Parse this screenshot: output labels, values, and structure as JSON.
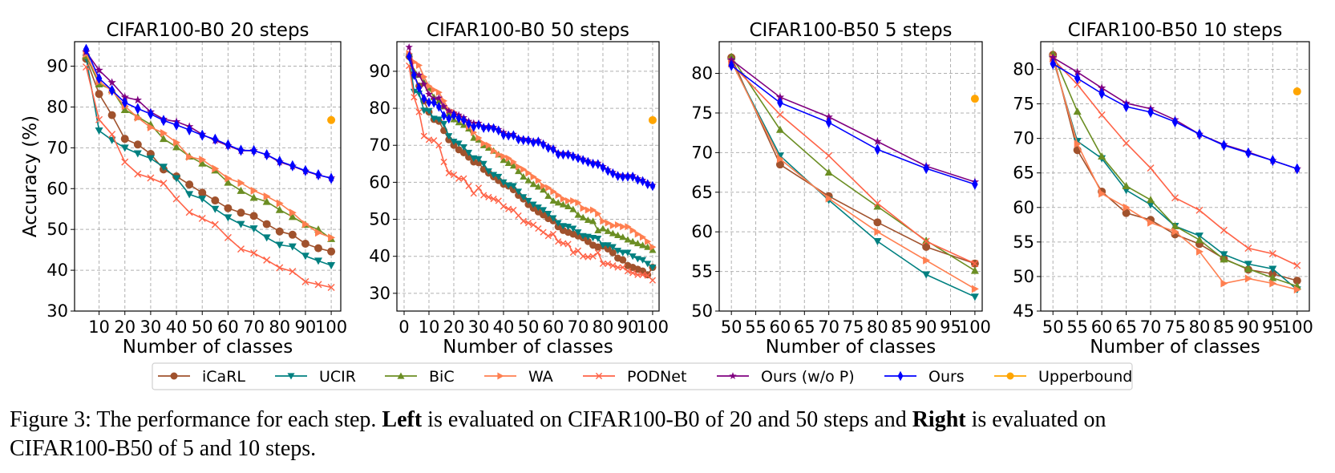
{
  "series_meta": [
    {
      "name": "iCaRL",
      "color": "#a0522d",
      "marker": "circle"
    },
    {
      "name": "UCIR",
      "color": "#008080",
      "marker": "triangle-down"
    },
    {
      "name": "BiC",
      "color": "#6b8e23",
      "marker": "triangle-up"
    },
    {
      "name": "WA",
      "color": "#ff7f50",
      "marker": "triangle-right"
    },
    {
      "name": "PODNet",
      "color": "#ff6347",
      "marker": "x"
    },
    {
      "name": "Ours (w/o P)",
      "color": "#800080",
      "marker": "star"
    },
    {
      "name": "Ours",
      "color": "#0000ff",
      "marker": "thin-diamond"
    },
    {
      "name": "Upperbound",
      "color": "#ffa500",
      "marker": "hexagon"
    }
  ],
  "legend": {
    "placement": "bottom-center",
    "items": [
      "iCaRL",
      "UCIR",
      "BiC",
      "WA",
      "PODNet",
      "Ours (w/o P)",
      "Ours",
      "Upperbound"
    ]
  },
  "caption": {
    "prefix": "Figure 3: The performance for each step. ",
    "left_bold": "Left",
    "middle": " is evaluated on CIFAR100-B0 of 20 and 50 steps and ",
    "right_bold": "Right",
    "suffix": " is evaluated on",
    "line2": "CIFAR100-B50 of 5 and 10 steps."
  },
  "chart_data": [
    {
      "type": "line",
      "title": "CIFAR100-B0 20 steps",
      "xlabel": "Number of classes",
      "ylabel": "Accuracy (%)",
      "xlim": [
        0.5,
        103.7
      ],
      "ylim": [
        30,
        96
      ],
      "xticks": [
        10,
        20,
        30,
        40,
        50,
        60,
        70,
        80,
        90,
        100
      ],
      "yticks": [
        30,
        40,
        50,
        60,
        70,
        80,
        90
      ],
      "grid": true,
      "x": [
        5,
        10,
        15,
        20,
        25,
        30,
        35,
        40,
        45,
        50,
        55,
        60,
        65,
        70,
        75,
        80,
        85,
        90,
        95,
        100
      ],
      "series": [
        {
          "name": "iCaRL",
          "values": [
            91.8,
            83.2,
            78,
            72.2,
            70.8,
            68.5,
            64.7,
            63,
            61,
            59,
            57.1,
            55.2,
            54.1,
            53.3,
            51.3,
            49.5,
            48.7,
            46.5,
            45.4,
            44.6
          ]
        },
        {
          "name": "UCIR",
          "values": [
            92,
            74.2,
            71.9,
            70,
            68.6,
            67.4,
            65.3,
            62.5,
            58.6,
            57.5,
            55,
            52.9,
            51.3,
            50.2,
            48,
            46.2,
            45.8,
            43.5,
            42.3,
            41.2
          ]
        },
        {
          "name": "BiC",
          "values": [
            92.5,
            85.6,
            84.3,
            79.3,
            77.6,
            75.7,
            72.2,
            70.2,
            67.9,
            66.2,
            64.5,
            61.5,
            59.5,
            57.8,
            56.8,
            54.8,
            53.1,
            51.2,
            50,
            47.7
          ]
        },
        {
          "name": "WA",
          "values": [
            93,
            86.2,
            84,
            80.2,
            77.4,
            75,
            73.6,
            71.3,
            67.8,
            67.1,
            64.9,
            62.5,
            61.4,
            59.5,
            58.1,
            56.4,
            54.1,
            51.3,
            49.2,
            48
          ]
        },
        {
          "name": "PODNet",
          "values": [
            89.8,
            76.9,
            73.3,
            66.5,
            63.6,
            62.6,
            61.3,
            57.5,
            54.2,
            52.7,
            51.2,
            48,
            45.2,
            44.2,
            42.5,
            40.6,
            39.7,
            37.2,
            36.5,
            35.8
          ]
        },
        {
          "name": "Ours (w/o P)",
          "values": [
            93.5,
            89,
            86,
            82.4,
            81.7,
            78.8,
            77,
            76.4,
            75.2,
            73.3,
            71.8,
            70.5,
            69.3,
            69.3,
            68.3,
            66.5,
            65.5,
            64.3,
            63.3,
            62.6
          ]
        },
        {
          "name": "Ours",
          "values": [
            94.1,
            87,
            84.1,
            81.1,
            79.6,
            78.3,
            76.7,
            75.6,
            74.4,
            73.1,
            72.1,
            70.7,
            69.4,
            69.3,
            68.3,
            66.7,
            65.6,
            64.4,
            63.4,
            62.5
          ]
        },
        {
          "name": "Upperbound",
          "points": [
            [
              100,
              76.8
            ]
          ]
        }
      ]
    },
    {
      "type": "line",
      "title": "CIFAR100-B0 50 steps",
      "xlabel": "Number of classes",
      "ylabel": "",
      "xlim": [
        -2.9,
        102.6
      ],
      "ylim": [
        25.2,
        98
      ],
      "xticks": [
        0,
        10,
        20,
        30,
        40,
        50,
        60,
        70,
        80,
        90,
        100
      ],
      "yticks": [
        30,
        40,
        50,
        60,
        70,
        80,
        90
      ],
      "grid": true,
      "x": [
        2,
        4,
        6,
        8,
        10,
        12,
        14,
        16,
        18,
        20,
        22,
        24,
        26,
        28,
        30,
        32,
        34,
        36,
        38,
        40,
        42,
        44,
        46,
        48,
        50,
        52,
        54,
        56,
        58,
        60,
        62,
        64,
        66,
        68,
        70,
        72,
        74,
        76,
        78,
        80,
        82,
        84,
        86,
        88,
        90,
        92,
        94,
        96,
        98,
        100
      ],
      "series": [
        {
          "name": "iCaRL",
          "values": [
            94,
            89,
            86,
            82,
            79,
            77,
            76.5,
            74,
            71.5,
            70,
            68.8,
            68,
            66.8,
            65.5,
            65.3,
            63.5,
            62.5,
            61.5,
            60.5,
            59.5,
            59,
            58,
            56.5,
            55.5,
            54,
            53,
            52,
            51.2,
            50.2,
            49.6,
            48,
            47,
            46.5,
            46,
            45.5,
            45,
            44,
            43,
            42.5,
            42.8,
            42,
            41,
            39.5,
            39,
            37.5,
            37,
            36.5,
            36,
            35,
            37
          ]
        },
        {
          "name": "UCIR",
          "values": [
            94,
            84.5,
            84,
            79.4,
            79.3,
            77.2,
            77,
            75.8,
            72.5,
            71,
            70.5,
            69.5,
            68,
            66.5,
            66.3,
            65,
            63,
            62,
            61.5,
            60,
            59.2,
            59,
            57.5,
            56,
            55,
            54,
            53.2,
            52.5,
            51.5,
            50.3,
            49,
            48.2,
            48,
            47.5,
            46.5,
            45.5,
            45.3,
            45,
            44.8,
            43,
            43,
            42.5,
            41.5,
            41,
            41,
            40,
            39.3,
            39,
            38,
            37
          ]
        },
        {
          "name": "BiC",
          "values": [
            94.5,
            90,
            89,
            87,
            85.5,
            83,
            82,
            80.5,
            78.5,
            77,
            76.2,
            75.5,
            74.5,
            72,
            71.5,
            70,
            69.3,
            68.5,
            67.5,
            66,
            65.2,
            64.5,
            63,
            61.5,
            60.5,
            59.5,
            58.8,
            58,
            56.3,
            55,
            54.5,
            54,
            53.5,
            52.7,
            51.2,
            50.5,
            49.8,
            49.5,
            47,
            47.5,
            46.8,
            46.2,
            45.7,
            45.2,
            44.5,
            44,
            43.5,
            43,
            42.5,
            41.7
          ]
        },
        {
          "name": "WA",
          "values": [
            94.8,
            92.5,
            91.6,
            88.5,
            86,
            85,
            84.3,
            82,
            79.5,
            79,
            78,
            77,
            75,
            73.5,
            72,
            70.5,
            70,
            68.5,
            67.5,
            67,
            66.5,
            65.5,
            64.2,
            63.5,
            62.5,
            61.5,
            60.5,
            59,
            58.5,
            57.5,
            56.5,
            55.5,
            55,
            55,
            54.5,
            53,
            52.5,
            52.5,
            51.5,
            49.5,
            49,
            48.3,
            48.5,
            48,
            48,
            47,
            46,
            45.2,
            44,
            42.5
          ]
        },
        {
          "name": "PODNet",
          "values": [
            91.5,
            83,
            79,
            72.5,
            71.5,
            71.3,
            70,
            65.5,
            62.5,
            62,
            61,
            61,
            59,
            57,
            58.5,
            56.5,
            56,
            55.5,
            55,
            53.5,
            52.8,
            52.5,
            51,
            49.5,
            49,
            48.5,
            47.5,
            46.5,
            45.5,
            46,
            44,
            43.5,
            43.3,
            41,
            41.5,
            40,
            39.8,
            40,
            41,
            38,
            38,
            37.5,
            37,
            37,
            36,
            35.5,
            35,
            35,
            34.8,
            33.5
          ]
        },
        {
          "name": "Ours (w/o P)",
          "values": [
            96.5,
            89.5,
            89,
            86.5,
            83.8,
            82.5,
            82.8,
            80.5,
            79.3,
            78.7,
            78.2,
            77.5,
            76.5,
            76,
            76,
            75,
            75.1,
            74.9,
            74.3,
            73.5,
            72.9,
            73,
            71.9,
            71.7,
            71.6,
            71.1,
            71.3,
            70.5,
            69.6,
            69.2,
            67.9,
            67.8,
            67.8,
            67.3,
            66.8,
            66.3,
            65.8,
            65.3,
            65.2,
            64.3,
            63.4,
            62.7,
            62,
            61.8,
            61.8,
            61.8,
            61,
            60.6,
            59.8,
            59.2
          ]
        },
        {
          "name": "Ours",
          "values": [
            94,
            89,
            85.5,
            82.6,
            81.6,
            81.5,
            80.4,
            78,
            77.2,
            78.1,
            77.3,
            76.8,
            75.8,
            75,
            75.5,
            74.7,
            74.8,
            74.6,
            74,
            72.8,
            72.6,
            72.7,
            71.6,
            71.4,
            71.3,
            70.8,
            71,
            70.2,
            69.3,
            68.9,
            67.6,
            67.5,
            67.5,
            67,
            66.5,
            66,
            65.5,
            65,
            64.9,
            64,
            63.1,
            62.4,
            61.7,
            61.5,
            61.5,
            61.5,
            60.7,
            60.3,
            59.5,
            59
          ]
        },
        {
          "name": "Upperbound",
          "points": [
            [
              100,
              76.8
            ]
          ]
        }
      ]
    },
    {
      "type": "line",
      "title": "CIFAR100-B50 5 steps",
      "xlabel": "Number of classes",
      "ylabel": "",
      "xlim": [
        47.5,
        101.5
      ],
      "ylim": [
        50,
        84
      ],
      "xticks": [
        50,
        55,
        60,
        65,
        70,
        75,
        80,
        85,
        90,
        95,
        100
      ],
      "yticks": [
        50,
        55,
        60,
        65,
        70,
        75,
        80
      ],
      "grid": true,
      "x": [
        50,
        60,
        70,
        80,
        90,
        100
      ],
      "series": [
        {
          "name": "iCaRL",
          "values": [
            82,
            68.5,
            64.5,
            61.2,
            58.1,
            56
          ]
        },
        {
          "name": "UCIR",
          "values": [
            81.5,
            69.6,
            64,
            58.8,
            54.6,
            51.8
          ]
        },
        {
          "name": "BiC",
          "values": [
            82.1,
            72.9,
            67.5,
            63.2,
            58.9,
            55.1
          ]
        },
        {
          "name": "WA",
          "values": [
            81.5,
            69.2,
            64.2,
            60,
            56.4,
            52.8
          ]
        },
        {
          "name": "PODNet",
          "values": [
            81.2,
            74.8,
            69.6,
            63.6,
            58.8,
            56
          ]
        },
        {
          "name": "Ours (w/o P)",
          "values": [
            81.7,
            77,
            74.5,
            71.4,
            68.3,
            66.3
          ]
        },
        {
          "name": "Ours",
          "values": [
            81,
            76.3,
            73.8,
            70.4,
            68,
            66
          ]
        },
        {
          "name": "Upperbound",
          "points": [
            [
              100,
              76.8
            ]
          ]
        }
      ]
    },
    {
      "type": "line",
      "title": "CIFAR100-B50 10 steps",
      "xlabel": "Number of classes",
      "ylabel": "",
      "xlim": [
        47.5,
        102.5
      ],
      "ylim": [
        45,
        84
      ],
      "xticks": [
        50,
        55,
        60,
        65,
        70,
        75,
        80,
        85,
        90,
        95,
        100
      ],
      "yticks": [
        45,
        50,
        55,
        60,
        65,
        70,
        75,
        80
      ],
      "grid": true,
      "x": [
        50,
        55,
        60,
        65,
        70,
        75,
        80,
        85,
        90,
        95,
        100
      ],
      "series": [
        {
          "name": "iCaRL",
          "values": [
            82.1,
            68.3,
            62.3,
            59.2,
            58.2,
            56.1,
            54.7,
            52.6,
            51,
            50.4,
            49.4
          ]
        },
        {
          "name": "UCIR",
          "values": [
            81.5,
            69.6,
            67.1,
            62.5,
            60.4,
            57.3,
            55.9,
            53.2,
            51.8,
            51.1,
            48.1
          ]
        },
        {
          "name": "BiC",
          "values": [
            82.2,
            73.9,
            67.4,
            63.1,
            61.1,
            57.3,
            55.3,
            52.5,
            51.1,
            49.8,
            48.6
          ]
        },
        {
          "name": "WA",
          "values": [
            81.7,
            69.2,
            62,
            60,
            57.8,
            56.5,
            53.6,
            49,
            49.7,
            49,
            48.1
          ]
        },
        {
          "name": "PODNet",
          "values": [
            81.5,
            77.8,
            73.4,
            69.3,
            65.7,
            61.4,
            59.6,
            56.7,
            54.1,
            53.3,
            51.6
          ]
        },
        {
          "name": "Ours (w/o P)",
          "values": [
            81.7,
            79.6,
            77.3,
            75.1,
            74.3,
            72.7,
            70.6,
            69.1,
            68,
            66.8,
            65.6
          ]
        },
        {
          "name": "Ours",
          "values": [
            80.8,
            78.7,
            76.5,
            74.6,
            73.8,
            72.4,
            70.6,
            69,
            67.9,
            66.8,
            65.6
          ]
        },
        {
          "name": "Upperbound",
          "points": [
            [
              100,
              76.8
            ]
          ]
        }
      ]
    }
  ]
}
